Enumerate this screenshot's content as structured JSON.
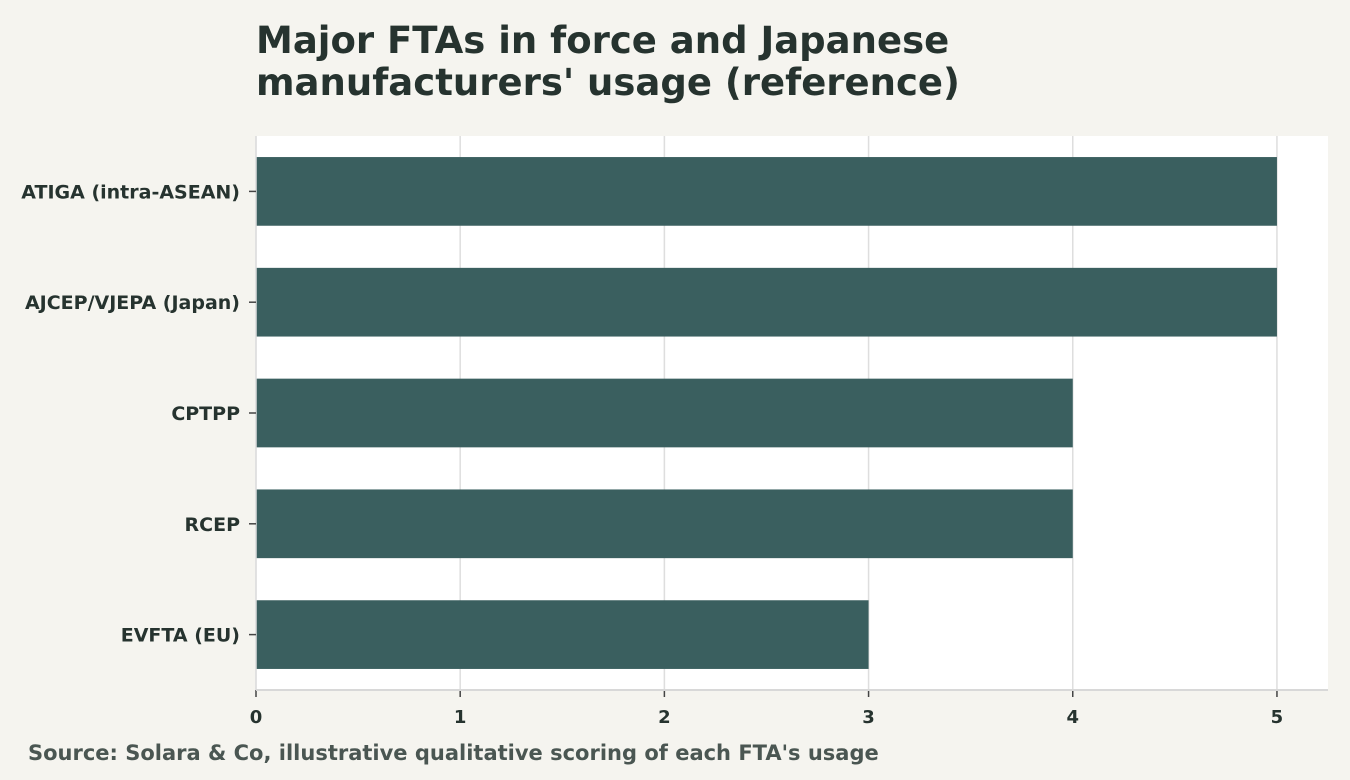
{
  "chart_data": {
    "type": "bar",
    "orientation": "horizontal",
    "title": "Major FTAs in force and Japanese manufacturers' usage (reference)",
    "categories": [
      "ATIGA (intra-ASEAN)",
      "AJCEP/VJEPA (Japan)",
      "CPTPP",
      "RCEP",
      "EVFTA (EU)"
    ],
    "values": [
      5,
      5,
      4,
      4,
      3
    ],
    "xlim": [
      0,
      5.25
    ],
    "xticks": [
      "0",
      "1",
      "2",
      "3",
      "4",
      "5"
    ],
    "xlabel": "",
    "ylabel": "",
    "grid": "vertical",
    "legend": "none",
    "bar_color": "#3a5f5f",
    "plot_background": "#ffffff",
    "page_background": "#f5f4ef",
    "source": "Source: Solara & Co, illustrative qualitative scoring of each FTA's usage"
  }
}
